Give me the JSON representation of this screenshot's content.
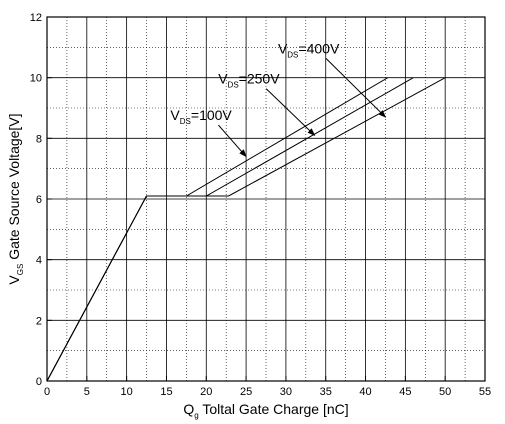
{
  "chart_data": {
    "type": "line",
    "xlabel": {
      "main": "Q",
      "sub": "g",
      "rest": " Toltal Gate Charge [nC]"
    },
    "ylabel": {
      "main": "V",
      "sub": "GS",
      "rest": " Gate Source Voltage[V]"
    },
    "xlim": [
      0,
      55
    ],
    "ylim": [
      0,
      12
    ],
    "x_ticks": [
      "0",
      "5",
      "10",
      "15",
      "20",
      "25",
      "30",
      "35",
      "40",
      "45",
      "50",
      "55"
    ],
    "y_ticks": [
      "0",
      "2",
      "4",
      "6",
      "8",
      "10",
      "12"
    ],
    "grid": true,
    "grid_style": "dotted minor, solid major",
    "series": [
      {
        "name": "VDS=100V",
        "points": [
          [
            0,
            0
          ],
          [
            12.5,
            6.1
          ],
          [
            17.5,
            6.1
          ],
          [
            42.8,
            10
          ]
        ]
      },
      {
        "name": "VDS=250V",
        "points": [
          [
            0,
            0
          ],
          [
            12.5,
            6.1
          ],
          [
            20.0,
            6.1
          ],
          [
            46.0,
            10
          ]
        ]
      },
      {
        "name": "VDS=400V",
        "points": [
          [
            0,
            0
          ],
          [
            12.5,
            6.1
          ],
          [
            22.8,
            6.1
          ],
          [
            50.0,
            10
          ]
        ]
      }
    ],
    "annotations": [
      {
        "main": "V",
        "sub": "DS",
        "rest": "=100V",
        "label_at": [
          15.5,
          8.6
        ],
        "arrow_to": [
          25.0,
          7.4
        ]
      },
      {
        "main": "V",
        "sub": "DS",
        "rest": "=250V",
        "label_at": [
          21.5,
          9.8
        ],
        "arrow_to": [
          33.6,
          8.1
        ]
      },
      {
        "main": "V",
        "sub": "DS",
        "rest": "=400V",
        "label_at": [
          29.0,
          10.8
        ],
        "arrow_to": [
          42.5,
          8.7
        ]
      }
    ],
    "colors": {
      "line": "#000000",
      "grid": "#000000",
      "background": "#ffffff"
    }
  }
}
